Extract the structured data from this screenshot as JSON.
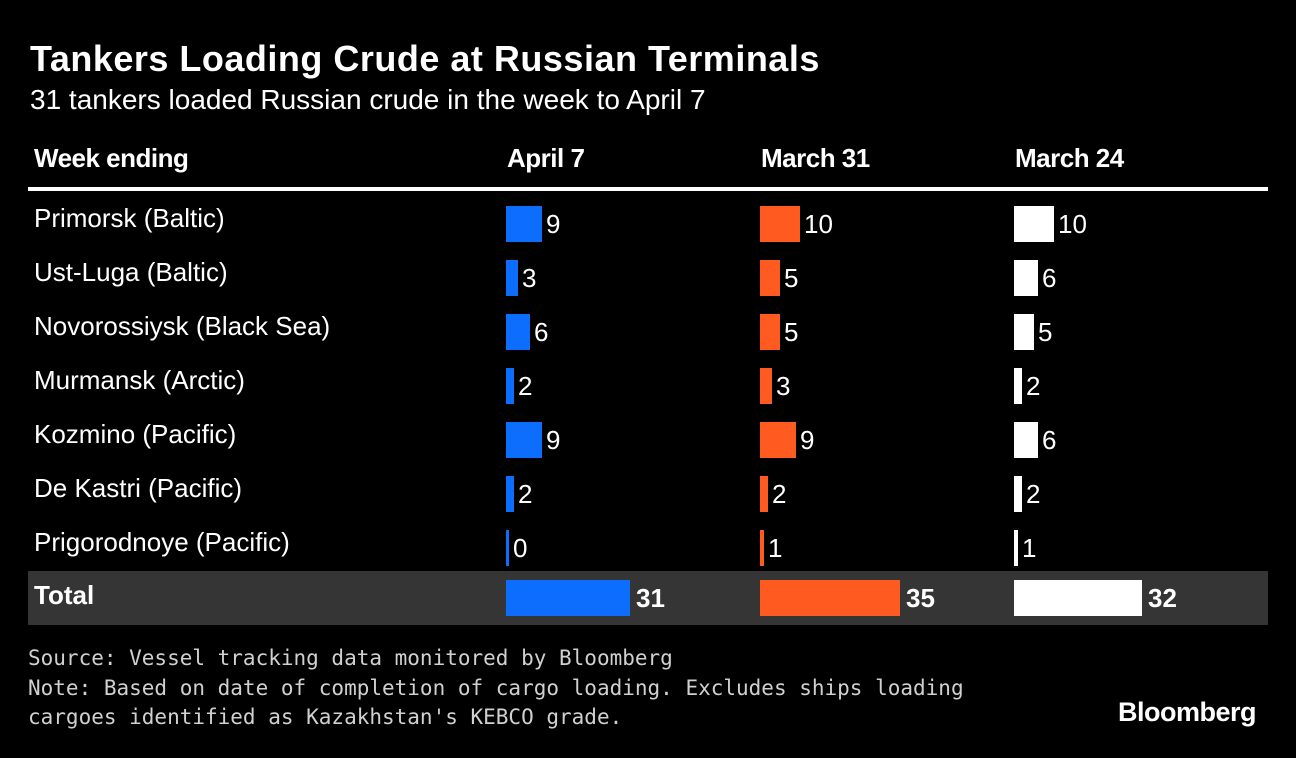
{
  "title": "Tankers Loading Crude at Russian Terminals",
  "subtitle": "31 tankers loaded Russian crude in the week to April 7",
  "chart_data": {
    "type": "table",
    "row_header": "Week ending",
    "series": [
      {
        "name": "April 7",
        "color": "#0d6efd",
        "values": [
          9,
          3,
          6,
          2,
          9,
          2,
          0
        ],
        "total": 31
      },
      {
        "name": "March 31",
        "color": "#ff5a1f",
        "values": [
          10,
          5,
          5,
          3,
          9,
          2,
          1
        ],
        "total": 35
      },
      {
        "name": "March 24",
        "color": "#ffffff",
        "values": [
          10,
          6,
          5,
          2,
          6,
          2,
          1
        ],
        "total": 32
      }
    ],
    "categories": [
      "Primorsk (Baltic)",
      "Ust-Luga (Baltic)",
      "Novorossiysk (Black Sea)",
      "Murmansk (Arctic)",
      "Kozmino (Pacific)",
      "De Kastri (Pacific)",
      "Prigorodnoye (Pacific)"
    ],
    "total_label": "Total"
  },
  "footer": {
    "source": "Source: Vessel tracking data monitored by Bloomberg",
    "note_line1": "Note: Based on date of completion of cargo loading. Excludes ships loading",
    "note_line2": "cargoes identified as Kazakhstan's KEBCO grade."
  },
  "brand": "Bloomberg"
}
